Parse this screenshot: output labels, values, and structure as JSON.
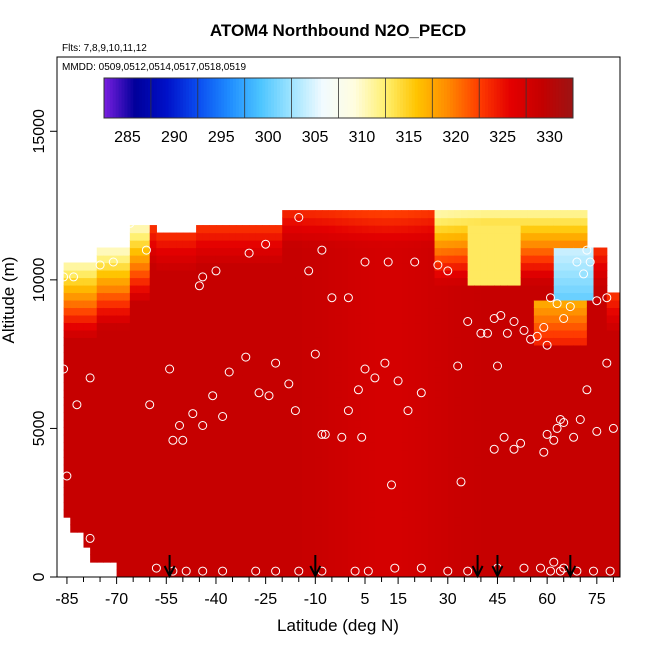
{
  "chart_data": {
    "type": "heatmap",
    "title": "ATOM4 Northbound N2O_PECD",
    "flights_label": "Flts: 7,8,9,10,11,12",
    "dates_label": "MMDD: 0509,0512,0514,0517,0518,0519",
    "xlabel": "Latitude (deg N)",
    "ylabel": "Altitude (m)",
    "xlim": [
      -88,
      82
    ],
    "ylim": [
      0,
      17500
    ],
    "x_ticks": [
      -85,
      -70,
      -55,
      -40,
      -25,
      -10,
      5,
      15,
      30,
      45,
      60,
      75
    ],
    "x_minor_ticks": [
      -80,
      -75,
      -65,
      -60,
      -50,
      -45,
      -35,
      -30,
      -20,
      -15,
      -5,
      0,
      10,
      20,
      25,
      35,
      40,
      50,
      55,
      65,
      70,
      80
    ],
    "y_ticks": [
      0,
      5000,
      10000,
      15000
    ],
    "colorbar": {
      "ticks": [
        285,
        290,
        295,
        300,
        305,
        310,
        315,
        320,
        325,
        330
      ],
      "min": 282.5,
      "max": 332.5,
      "colors": [
        "#7a1fe0",
        "#00009a",
        "#0010c8",
        "#0a4cf0",
        "#1e8cff",
        "#4cc4ff",
        "#9fe4ff",
        "#f2fbff",
        "#fffde0",
        "#fff070",
        "#ffc400",
        "#ff8a00",
        "#ff3c00",
        "#e40000",
        "#c40000",
        "#9c1414"
      ]
    },
    "field_description_by_altitude_band": [
      {
        "alt_range": [
          0,
          9000
        ],
        "value": 328
      },
      {
        "alt_range": [
          9000,
          11500
        ],
        "value": 316
      },
      {
        "alt_range": [
          11500,
          12400
        ],
        "value": 325
      }
    ],
    "arrows_latitudes": [
      -54,
      -10,
      39,
      45,
      67
    ],
    "sample_points": [
      [
        -86,
        10100
      ],
      [
        -83,
        10100
      ],
      [
        -75,
        10500
      ],
      [
        -71,
        10600
      ],
      [
        -66,
        11900
      ],
      [
        -61,
        11000
      ],
      [
        -45,
        9800
      ],
      [
        -44,
        10100
      ],
      [
        -40,
        10300
      ],
      [
        -30,
        10900
      ],
      [
        -25,
        11200
      ],
      [
        -15,
        12100
      ],
      [
        -12,
        10300
      ],
      [
        -8,
        11000
      ],
      [
        -5,
        9400
      ],
      [
        0,
        9400
      ],
      [
        5,
        10600
      ],
      [
        12,
        10600
      ],
      [
        20,
        10600
      ],
      [
        27,
        10500
      ],
      [
        30,
        10300
      ],
      [
        40,
        8200
      ],
      [
        42,
        8200
      ],
      [
        44,
        8700
      ],
      [
        46,
        8800
      ],
      [
        48,
        8200
      ],
      [
        50,
        8600
      ],
      [
        53,
        8300
      ],
      [
        55,
        8000
      ],
      [
        57,
        8100
      ],
      [
        59,
        8400
      ],
      [
        60,
        7800
      ],
      [
        61,
        9400
      ],
      [
        63,
        9200
      ],
      [
        65,
        8700
      ],
      [
        67,
        9100
      ],
      [
        69,
        10600
      ],
      [
        71,
        10200
      ],
      [
        72,
        11000
      ],
      [
        73,
        10600
      ],
      [
        75,
        9300
      ],
      [
        78,
        9400
      ],
      [
        -86,
        7000
      ],
      [
        -78,
        6700
      ],
      [
        -82,
        5800
      ],
      [
        -60,
        5800
      ],
      [
        -54,
        7000
      ],
      [
        -53,
        4600
      ],
      [
        -51,
        5100
      ],
      [
        -50,
        4600
      ],
      [
        -47,
        5500
      ],
      [
        -44,
        5100
      ],
      [
        -41,
        6100
      ],
      [
        -38,
        5400
      ],
      [
        -36,
        6900
      ],
      [
        -31,
        7400
      ],
      [
        -27,
        6200
      ],
      [
        -24,
        6100
      ],
      [
        -22,
        7200
      ],
      [
        -18,
        6500
      ],
      [
        -16,
        5600
      ],
      [
        -10,
        7500
      ],
      [
        -8,
        4800
      ],
      [
        -7,
        4800
      ],
      [
        -2,
        4700
      ],
      [
        0,
        5600
      ],
      [
        3,
        6300
      ],
      [
        4,
        4700
      ],
      [
        5,
        7000
      ],
      [
        8,
        6700
      ],
      [
        11,
        7200
      ],
      [
        13,
        3100
      ],
      [
        15,
        6600
      ],
      [
        18,
        5600
      ],
      [
        22,
        6200
      ],
      [
        33,
        7100
      ],
      [
        34,
        3200
      ],
      [
        36,
        8600
      ],
      [
        45,
        7100
      ],
      [
        47,
        4700
      ],
      [
        44,
        4300
      ],
      [
        50,
        4300
      ],
      [
        52,
        4500
      ],
      [
        59,
        4200
      ],
      [
        60,
        4800
      ],
      [
        62,
        4600
      ],
      [
        63,
        5000
      ],
      [
        64,
        5300
      ],
      [
        65,
        5200
      ],
      [
        68,
        4700
      ],
      [
        70,
        5300
      ],
      [
        72,
        6300
      ],
      [
        75,
        4900
      ],
      [
        78,
        7200
      ],
      [
        80,
        5000
      ],
      [
        -85,
        3400
      ],
      [
        -78,
        1300
      ],
      [
        -58,
        300
      ],
      [
        -53,
        200
      ],
      [
        -49,
        200
      ],
      [
        -44,
        200
      ],
      [
        -38,
        200
      ],
      [
        -28,
        200
      ],
      [
        -22,
        200
      ],
      [
        -15,
        200
      ],
      [
        -8,
        200
      ],
      [
        2,
        200
      ],
      [
        6,
        200
      ],
      [
        14,
        300
      ],
      [
        22,
        300
      ],
      [
        30,
        200
      ],
      [
        36,
        200
      ],
      [
        45,
        300
      ],
      [
        53,
        300
      ],
      [
        58,
        300
      ],
      [
        61,
        200
      ],
      [
        62,
        500
      ],
      [
        64,
        200
      ],
      [
        65,
        300
      ],
      [
        69,
        200
      ],
      [
        74,
        200
      ],
      [
        79,
        200
      ]
    ]
  }
}
